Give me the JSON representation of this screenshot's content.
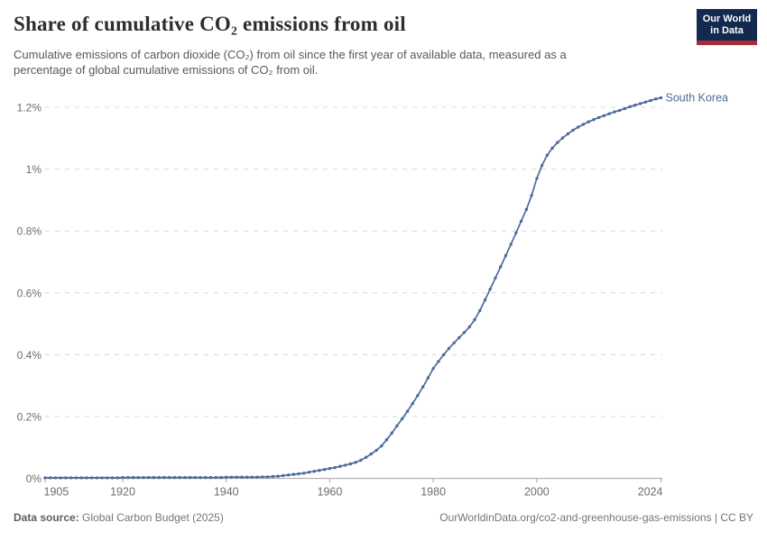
{
  "header": {
    "title": "Share of cumulative CO₂ emissions from oil",
    "subtitle_lines": [
      "Cumulative emissions of carbon dioxide (CO₂) from oil since the first year of available data, measured as a",
      "percentage of global cumulative emissions of CO₂ from oil."
    ],
    "logo": {
      "line1": "Our World",
      "line2": "in Data"
    }
  },
  "footer": {
    "source_label": "Data source:",
    "source_value": "Global Carbon Budget (2025)",
    "right_text": "OurWorldinData.org/co2-and-greenhouse-gas-emissions | CC BY"
  },
  "colors": {
    "line": "#4C6A9C",
    "entity_label": "#4C6A9C",
    "grid": "#d8d8d8",
    "axis": "#a3a3a3",
    "tick_text": "#6e6e6e",
    "logo_bg": "#13294f",
    "logo_accent": "#a82b35"
  },
  "chart_data": {
    "type": "line",
    "title": "Share of cumulative CO₂ emissions from oil",
    "xlabel": "",
    "ylabel": "",
    "xlim": [
      1905,
      2024
    ],
    "ylim": [
      0,
      1.25
    ],
    "grid": "horizontal-dashed",
    "legend": "end-of-line entity label",
    "x_ticks": [
      1905,
      1920,
      1940,
      1960,
      1980,
      2000,
      2024
    ],
    "y_ticks": [
      {
        "value": 0,
        "label": "0%"
      },
      {
        "value": 0.2,
        "label": "0.2%"
      },
      {
        "value": 0.4,
        "label": "0.4%"
      },
      {
        "value": 0.6,
        "label": "0.6%"
      },
      {
        "value": 0.8,
        "label": "0.8%"
      },
      {
        "value": 1.0,
        "label": "1%"
      },
      {
        "value": 1.2,
        "label": "1.2%"
      }
    ],
    "series": [
      {
        "name": "South Korea",
        "unit": "%",
        "start_year": 1905,
        "end_year": 2024,
        "values": [
          0.002,
          0.002,
          0.002,
          0.002,
          0.002,
          0.002,
          0.002,
          0.002,
          0.002,
          0.002,
          0.002,
          0.002,
          0.002,
          0.002,
          0.002,
          0.003,
          0.003,
          0.003,
          0.003,
          0.003,
          0.003,
          0.003,
          0.003,
          0.003,
          0.003,
          0.003,
          0.003,
          0.003,
          0.003,
          0.003,
          0.003,
          0.003,
          0.003,
          0.003,
          0.003,
          0.004,
          0.004,
          0.004,
          0.004,
          0.004,
          0.004,
          0.004,
          0.005,
          0.005,
          0.006,
          0.007,
          0.009,
          0.011,
          0.013,
          0.015,
          0.017,
          0.02,
          0.023,
          0.026,
          0.029,
          0.032,
          0.035,
          0.039,
          0.043,
          0.047,
          0.052,
          0.059,
          0.068,
          0.079,
          0.091,
          0.105,
          0.125,
          0.147,
          0.17,
          0.193,
          0.217,
          0.242,
          0.268,
          0.296,
          0.325,
          0.355,
          0.378,
          0.4,
          0.42,
          0.438,
          0.455,
          0.472,
          0.49,
          0.513,
          0.543,
          0.577,
          0.612,
          0.648,
          0.684,
          0.72,
          0.757,
          0.794,
          0.832,
          0.87,
          0.915,
          0.97,
          1.012,
          1.045,
          1.068,
          1.086,
          1.101,
          1.114,
          1.126,
          1.136,
          1.145,
          1.153,
          1.16,
          1.167,
          1.173,
          1.179,
          1.185,
          1.19,
          1.196,
          1.202,
          1.207,
          1.212,
          1.217,
          1.222,
          1.227,
          1.231
        ]
      }
    ]
  }
}
